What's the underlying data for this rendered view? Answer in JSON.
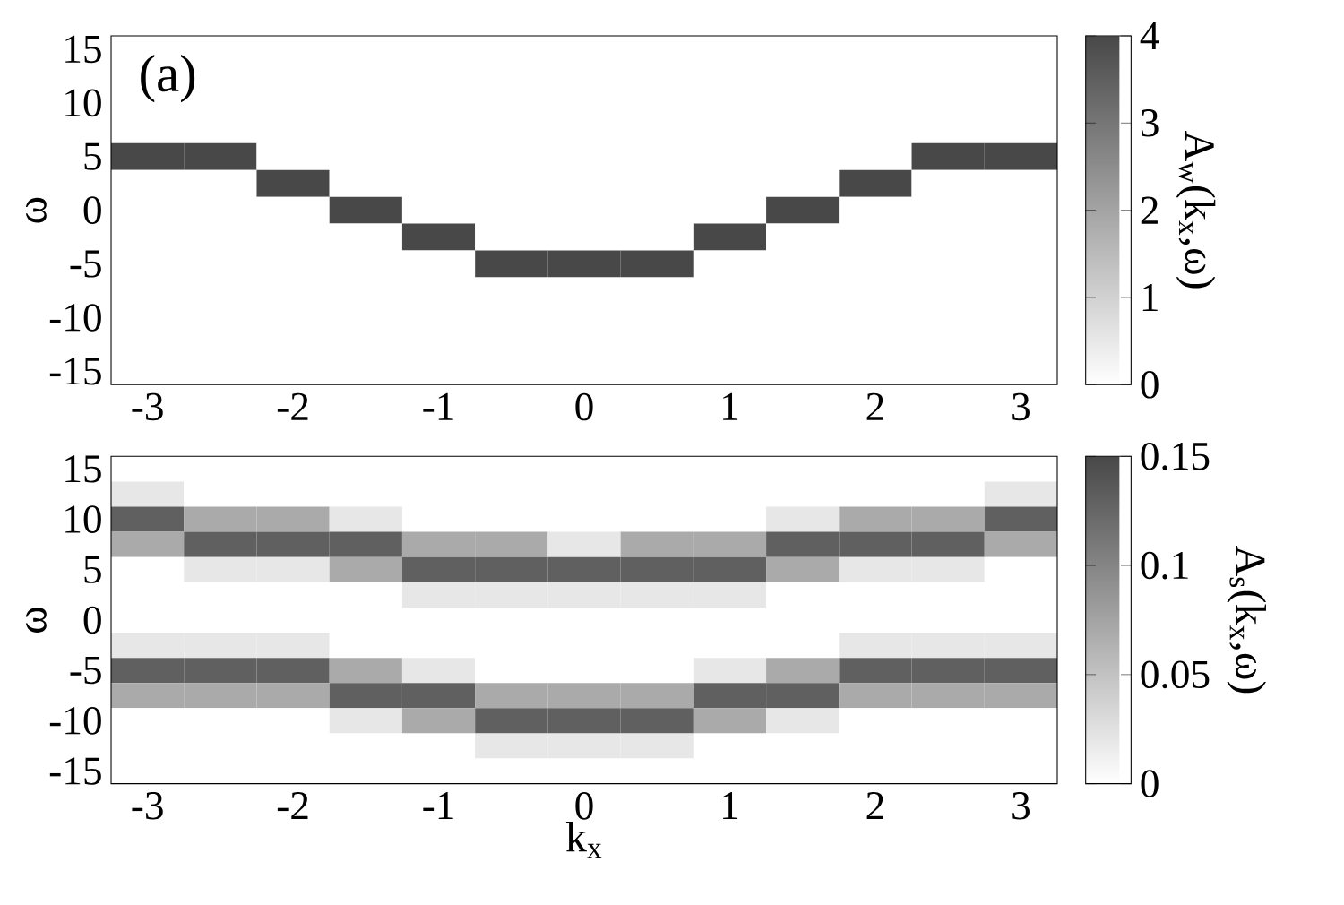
{
  "chart_data": [
    {
      "type": "heatmap",
      "annotations": [
        "(a)"
      ],
      "ylabel": "ω",
      "clabel": "A$_{w}$(k$_{x}$,ω)",
      "categories": [
        "-3",
        null,
        "-2",
        null,
        "-1",
        null,
        "0",
        null,
        "1",
        null,
        "2",
        null,
        "3"
      ],
      "y_categories": [
        "15",
        null,
        "10",
        null,
        "5",
        null,
        "0",
        null,
        "-5",
        null,
        "-10",
        null,
        "-15"
      ],
      "clim": [
        0,
        4
      ],
      "cticks": [
        0,
        1,
        2,
        3,
        4
      ],
      "cells": [
        [
          0,
          0,
          0,
          0,
          0,
          0,
          0,
          0,
          0,
          0,
          0,
          0,
          0
        ],
        [
          0,
          0,
          0,
          0,
          0,
          0,
          0,
          0,
          0,
          0,
          0,
          0,
          0
        ],
        [
          0,
          0,
          0,
          0,
          0,
          0,
          0,
          0,
          0,
          0,
          0,
          0,
          0
        ],
        [
          0,
          0,
          0,
          0,
          0,
          0,
          0,
          0,
          0,
          0,
          0,
          0,
          0
        ],
        [
          4,
          4,
          0,
          0,
          0,
          0,
          0,
          0,
          0,
          0,
          0,
          4,
          4
        ],
        [
          0,
          0,
          4,
          0,
          0,
          0,
          0,
          0,
          0,
          0,
          4,
          0,
          0
        ],
        [
          0,
          0,
          0,
          4,
          0,
          0,
          0,
          0,
          0,
          4,
          0,
          0,
          0
        ],
        [
          0,
          0,
          0,
          0,
          4,
          0,
          0,
          0,
          4,
          0,
          0,
          0,
          0
        ],
        [
          0,
          0,
          0,
          0,
          0,
          4,
          4,
          4,
          0,
          0,
          0,
          0,
          0
        ],
        [
          0,
          0,
          0,
          0,
          0,
          0,
          0,
          0,
          0,
          0,
          0,
          0,
          0
        ],
        [
          0,
          0,
          0,
          0,
          0,
          0,
          0,
          0,
          0,
          0,
          0,
          0,
          0
        ],
        [
          0,
          0,
          0,
          0,
          0,
          0,
          0,
          0,
          0,
          0,
          0,
          0,
          0
        ],
        [
          0,
          0,
          0,
          0,
          0,
          0,
          0,
          0,
          0,
          0,
          0,
          0,
          0
        ]
      ]
    },
    {
      "type": "heatmap",
      "xlabel": "k$_{x}$",
      "ylabel": "ω",
      "clabel": "A$_{s}$(k$_{x}$,ω)",
      "categories": [
        "-3",
        null,
        "-2",
        null,
        "-1",
        null,
        "0",
        null,
        "1",
        null,
        "2",
        null,
        "3"
      ],
      "y_categories": [
        "15",
        null,
        "10",
        null,
        "5",
        null,
        "0",
        null,
        "-5",
        null,
        "-10",
        null,
        "-15"
      ],
      "clim": [
        0,
        0.15
      ],
      "cticks": [
        0,
        0.05,
        0.1,
        0.15
      ],
      "cells": [
        [
          0,
          0,
          0,
          0,
          0,
          0,
          0,
          0,
          0,
          0,
          0,
          0,
          0
        ],
        [
          0.02,
          0,
          0,
          0,
          0,
          0,
          0,
          0,
          0,
          0,
          0,
          0,
          0.02
        ],
        [
          0.13,
          0.07,
          0.07,
          0.02,
          0,
          0,
          0,
          0,
          0,
          0.02,
          0.07,
          0.07,
          0.13
        ],
        [
          0.07,
          0.13,
          0.13,
          0.13,
          0.07,
          0.07,
          0.02,
          0.07,
          0.07,
          0.13,
          0.13,
          0.13,
          0.07
        ],
        [
          0,
          0.02,
          0.02,
          0.07,
          0.13,
          0.13,
          0.13,
          0.13,
          0.13,
          0.07,
          0.02,
          0.02,
          0
        ],
        [
          0,
          0,
          0,
          0,
          0.02,
          0.02,
          0.02,
          0.02,
          0.02,
          0,
          0,
          0,
          0
        ],
        [
          0,
          0,
          0,
          0,
          0,
          0,
          0,
          0,
          0,
          0,
          0,
          0,
          0
        ],
        [
          0.02,
          0.02,
          0.02,
          0,
          0,
          0,
          0,
          0,
          0,
          0,
          0.02,
          0.02,
          0.02
        ],
        [
          0.13,
          0.13,
          0.13,
          0.07,
          0.02,
          0,
          0,
          0,
          0.02,
          0.07,
          0.13,
          0.13,
          0.13
        ],
        [
          0.07,
          0.07,
          0.07,
          0.13,
          0.13,
          0.07,
          0.07,
          0.07,
          0.13,
          0.13,
          0.07,
          0.07,
          0.07
        ],
        [
          0,
          0,
          0,
          0.02,
          0.07,
          0.13,
          0.13,
          0.13,
          0.07,
          0.02,
          0,
          0,
          0
        ],
        [
          0,
          0,
          0,
          0,
          0,
          0.02,
          0.02,
          0.02,
          0,
          0,
          0,
          0,
          0
        ],
        [
          0,
          0,
          0,
          0,
          0,
          0,
          0,
          0,
          0,
          0,
          0,
          0,
          0
        ]
      ]
    }
  ]
}
